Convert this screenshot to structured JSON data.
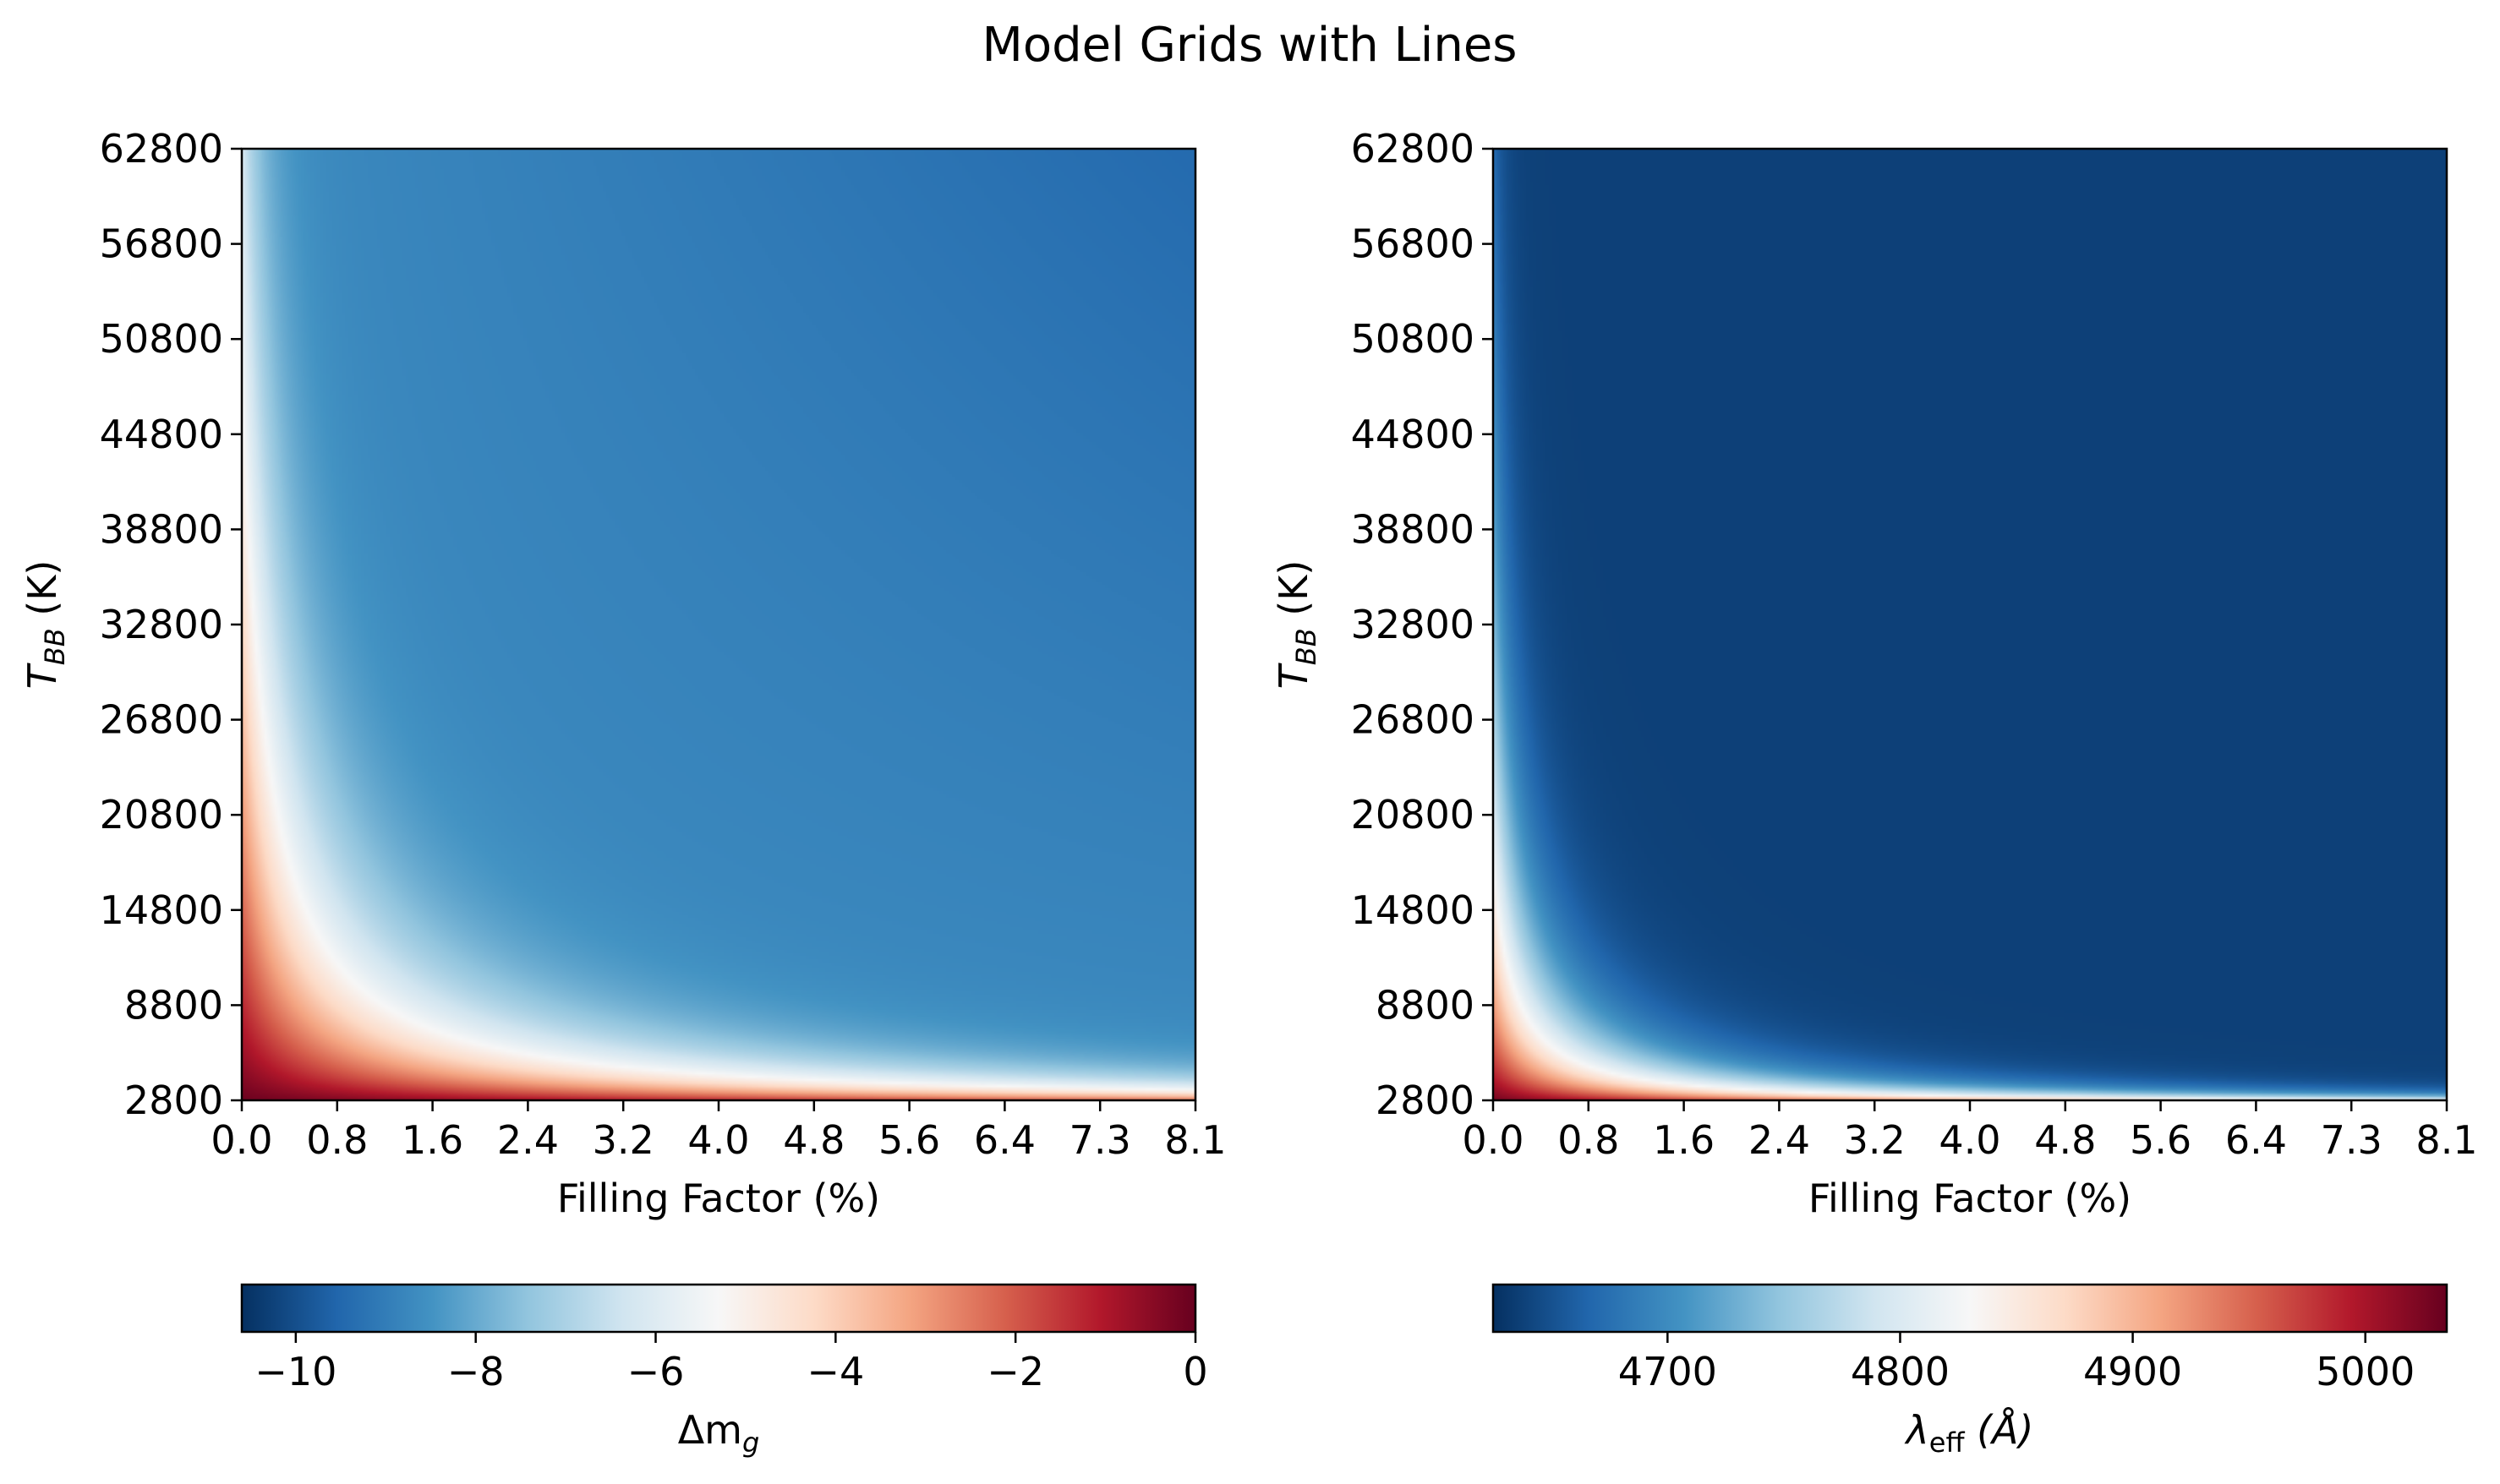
{
  "title": "Model Grids with Lines",
  "colors": {
    "RdBu_r": [
      "#053061",
      "#2166ac",
      "#4393c3",
      "#92c5de",
      "#d1e5f0",
      "#f7f7f7",
      "#fddbc7",
      "#f4a582",
      "#d6604d",
      "#b2182b",
      "#67001f"
    ]
  },
  "chart_data": [
    {
      "type": "heatmap",
      "title": "",
      "xlabel": "Filling Factor (%)",
      "ylabel": "T",
      "ylabel_sub": "BB",
      "ylabel_unit": " (K)",
      "x_ticks": [
        "0.0",
        "0.8",
        "1.6",
        "2.4",
        "3.2",
        "4.0",
        "4.8",
        "5.6",
        "6.4",
        "7.3",
        "8.1"
      ],
      "y_ticks": [
        "2800",
        "8800",
        "14800",
        "20800",
        "26800",
        "32800",
        "38800",
        "44800",
        "50800",
        "56800",
        "62800"
      ],
      "xlim": [
        0.0,
        8.1
      ],
      "ylim": [
        2800,
        62800
      ],
      "colormap": "RdBu_r",
      "colorbar": {
        "label": "Δm",
        "label_sub": "g",
        "range": [
          -10.6,
          0
        ],
        "ticks": [
          "−10",
          "−8",
          "−6",
          "−4",
          "−2",
          "0"
        ],
        "tick_values": [
          -10,
          -8,
          -6,
          -4,
          -2,
          0
        ]
      },
      "grid": false
    },
    {
      "type": "heatmap",
      "title": "",
      "xlabel": "Filling Factor (%)",
      "ylabel": "T",
      "ylabel_sub": "BB",
      "ylabel_unit": " (K)",
      "x_ticks": [
        "0.0",
        "0.8",
        "1.6",
        "2.4",
        "3.2",
        "4.0",
        "4.8",
        "5.6",
        "6.4",
        "7.3",
        "8.1"
      ],
      "y_ticks": [
        "2800",
        "8800",
        "14800",
        "20800",
        "26800",
        "32800",
        "38800",
        "44800",
        "50800",
        "56800",
        "62800"
      ],
      "xlim": [
        0.0,
        8.1
      ],
      "ylim": [
        2800,
        62800
      ],
      "colormap": "RdBu_r",
      "colorbar": {
        "label": "λ",
        "label_sub": "eff",
        "label_unit": " (Å)",
        "range": [
          4625,
          5035
        ],
        "ticks": [
          "4700",
          "4800",
          "4900",
          "5000"
        ],
        "tick_values": [
          4700,
          4800,
          4900,
          5000
        ]
      },
      "grid": false
    }
  ]
}
